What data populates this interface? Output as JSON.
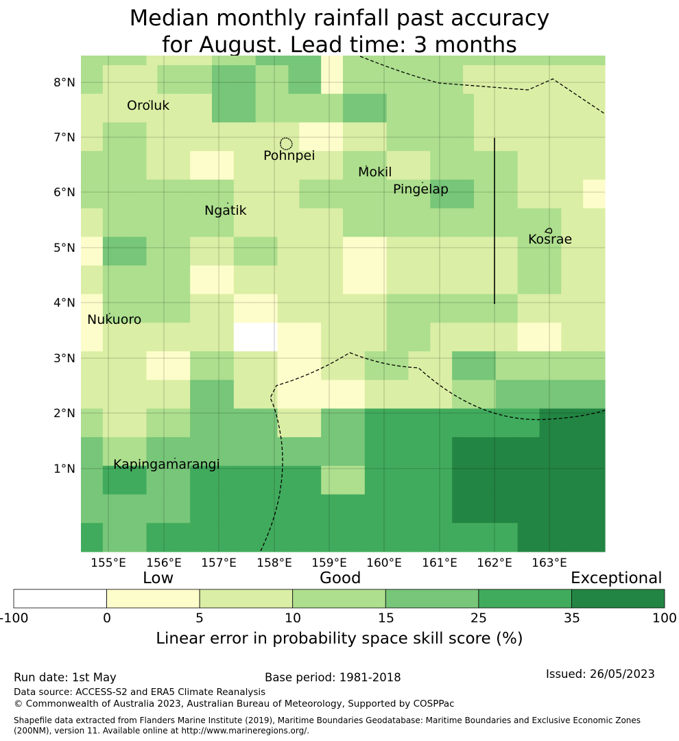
{
  "title": {
    "line1": "Median monthly rainfall past accuracy",
    "line2": "for August. Lead time: 3 months"
  },
  "map": {
    "lat_ticks": [
      "8°N",
      "7°N",
      "6°N",
      "5°N",
      "4°N",
      "3°N",
      "2°N",
      "1°N"
    ],
    "lon_ticks": [
      "155°E",
      "156°E",
      "157°E",
      "158°E",
      "159°E",
      "160°E",
      "161°E",
      "162°E",
      "163°E"
    ],
    "places": [
      {
        "id": "oroluk",
        "name": "Oroluk"
      },
      {
        "id": "pohnpei",
        "name": "Pohnpei"
      },
      {
        "id": "mokil",
        "name": "Mokil"
      },
      {
        "id": "pingelap",
        "name": "Pingelap"
      },
      {
        "id": "ngatik",
        "name": "Ngatik"
      },
      {
        "id": "kosrae",
        "name": "Kosrae"
      },
      {
        "id": "nukuoro",
        "name": "Nukuoro"
      },
      {
        "id": "kapingamarangi",
        "name": "Kapingamarangi"
      }
    ],
    "category_colors": [
      "#ffffff",
      "#fdfdcb",
      "#dbeea5",
      "#addf8e",
      "#77c679",
      "#41ab5d",
      "#238543"
    ],
    "grid_bins": [
      [
        3,
        3,
        2,
        2,
        2,
        2,
        2,
        3,
        3,
        3,
        3,
        3,
        4,
        4,
        4,
        4,
        3,
        3,
        3,
        4,
        4,
        4,
        1,
        1,
        3,
        3,
        3,
        3,
        3,
        3,
        3,
        3,
        3,
        3,
        3,
        2,
        2,
        2,
        2,
        2,
        2,
        2,
        2,
        2,
        2,
        2,
        2,
        2
      ],
      [
        2,
        2,
        2,
        2,
        2,
        2,
        2,
        2,
        2,
        2,
        2,
        2,
        4,
        4,
        4,
        4,
        3,
        3,
        3,
        3,
        3,
        3,
        3,
        3,
        4,
        4,
        4,
        4,
        3,
        3,
        3,
        3,
        3,
        3,
        3,
        3,
        2,
        2,
        2,
        2,
        2,
        2,
        2,
        2,
        2,
        2,
        2,
        2
      ],
      [
        2,
        2,
        3,
        3,
        3,
        3,
        2,
        2,
        2,
        2,
        2,
        2,
        2,
        2,
        2,
        2,
        2,
        2,
        2,
        2,
        1,
        1,
        1,
        1,
        2,
        2,
        2,
        2,
        3,
        3,
        3,
        3,
        3,
        3,
        3,
        3,
        2,
        2,
        2,
        2,
        2,
        2,
        2,
        2,
        2,
        2,
        2,
        2
      ],
      [
        3,
        3,
        3,
        3,
        3,
        3,
        2,
        2,
        2,
        2,
        1,
        1,
        1,
        1,
        2,
        2,
        2,
        2,
        2,
        2,
        2,
        2,
        2,
        2,
        3,
        3,
        3,
        3,
        2,
        2,
        2,
        2,
        3,
        3,
        3,
        3,
        3,
        3,
        3,
        3,
        2,
        2,
        2,
        2,
        2,
        2,
        2,
        2
      ],
      [
        3,
        3,
        3,
        3,
        3,
        3,
        3,
        3,
        3,
        3,
        3,
        3,
        3,
        3,
        2,
        2,
        2,
        2,
        2,
        2,
        3,
        3,
        3,
        3,
        3,
        3,
        3,
        3,
        3,
        3,
        3,
        3,
        4,
        4,
        4,
        4,
        3,
        3,
        3,
        3,
        2,
        2,
        2,
        2,
        2,
        2,
        1,
        1
      ],
      [
        2,
        2,
        3,
        3,
        3,
        3,
        3,
        3,
        3,
        3,
        3,
        3,
        3,
        3,
        2,
        2,
        2,
        2,
        2,
        2,
        2,
        2,
        2,
        2,
        3,
        3,
        3,
        3,
        3,
        3,
        3,
        3,
        3,
        3,
        3,
        3,
        3,
        3,
        3,
        3,
        3,
        3,
        3,
        3,
        2,
        2,
        2,
        2
      ],
      [
        1,
        1,
        4,
        4,
        4,
        4,
        3,
        3,
        3,
        3,
        2,
        2,
        2,
        2,
        3,
        3,
        3,
        3,
        2,
        2,
        2,
        2,
        2,
        2,
        1,
        1,
        1,
        1,
        2,
        2,
        2,
        2,
        2,
        2,
        2,
        2,
        2,
        2,
        2,
        2,
        3,
        3,
        3,
        3,
        2,
        2,
        2,
        2
      ],
      [
        2,
        2,
        3,
        3,
        3,
        3,
        3,
        3,
        3,
        3,
        1,
        1,
        1,
        1,
        2,
        2,
        2,
        2,
        2,
        2,
        2,
        2,
        2,
        2,
        1,
        1,
        1,
        1,
        2,
        2,
        2,
        2,
        2,
        2,
        2,
        2,
        2,
        2,
        2,
        2,
        3,
        3,
        3,
        3,
        2,
        2,
        2,
        2
      ],
      [
        1,
        1,
        3,
        3,
        3,
        3,
        3,
        3,
        3,
        3,
        2,
        2,
        2,
        2,
        1,
        1,
        1,
        1,
        2,
        2,
        2,
        2,
        2,
        2,
        2,
        2,
        2,
        2,
        3,
        3,
        3,
        3,
        3,
        3,
        3,
        3,
        3,
        3,
        3,
        3,
        2,
        2,
        2,
        2,
        2,
        2,
        2,
        2
      ],
      [
        1,
        1,
        2,
        2,
        2,
        2,
        2,
        2,
        2,
        2,
        2,
        2,
        2,
        2,
        0,
        0,
        0,
        0,
        1,
        1,
        1,
        1,
        2,
        2,
        2,
        2,
        2,
        2,
        3,
        3,
        3,
        3,
        2,
        2,
        2,
        2,
        2,
        2,
        2,
        2,
        1,
        1,
        1,
        1,
        2,
        2,
        2,
        2
      ],
      [
        2,
        2,
        2,
        2,
        2,
        2,
        1,
        1,
        1,
        1,
        3,
        3,
        3,
        3,
        2,
        2,
        2,
        2,
        1,
        1,
        1,
        1,
        2,
        2,
        2,
        2,
        3,
        3,
        3,
        3,
        2,
        2,
        2,
        2,
        4,
        4,
        4,
        4,
        3,
        3,
        3,
        3,
        3,
        3,
        3,
        3,
        3,
        3
      ],
      [
        2,
        2,
        2,
        2,
        2,
        2,
        2,
        2,
        2,
        2,
        4,
        4,
        4,
        4,
        2,
        2,
        2,
        2,
        1,
        1,
        1,
        1,
        1,
        1,
        1,
        1,
        2,
        2,
        2,
        2,
        2,
        2,
        2,
        2,
        3,
        3,
        3,
        3,
        4,
        4,
        4,
        4,
        4,
        4,
        4,
        4,
        4,
        4
      ],
      [
        3,
        3,
        2,
        2,
        2,
        2,
        3,
        3,
        3,
        3,
        4,
        4,
        4,
        4,
        4,
        4,
        4,
        4,
        2,
        2,
        2,
        2,
        4,
        4,
        4,
        4,
        5,
        5,
        5,
        5,
        5,
        5,
        5,
        5,
        5,
        5,
        5,
        5,
        5,
        5,
        5,
        5,
        6,
        6,
        6,
        6,
        6,
        6
      ],
      [
        4,
        4,
        3,
        3,
        3,
        3,
        4,
        4,
        4,
        4,
        4,
        4,
        4,
        4,
        4,
        4,
        4,
        4,
        4,
        4,
        4,
        4,
        4,
        4,
        4,
        4,
        5,
        5,
        5,
        5,
        5,
        5,
        5,
        5,
        6,
        6,
        6,
        6,
        6,
        6,
        6,
        6,
        6,
        6,
        6,
        6,
        6,
        6
      ],
      [
        4,
        4,
        5,
        5,
        5,
        5,
        4,
        4,
        4,
        4,
        5,
        5,
        5,
        5,
        5,
        5,
        5,
        5,
        5,
        5,
        5,
        5,
        3,
        3,
        3,
        3,
        5,
        5,
        5,
        5,
        5,
        5,
        5,
        5,
        6,
        6,
        6,
        6,
        6,
        6,
        6,
        6,
        6,
        6,
        6,
        6,
        6,
        6
      ],
      [
        4,
        4,
        4,
        4,
        4,
        4,
        4,
        4,
        4,
        4,
        5,
        5,
        5,
        5,
        5,
        5,
        5,
        5,
        5,
        5,
        5,
        5,
        5,
        5,
        5,
        5,
        5,
        5,
        5,
        5,
        5,
        5,
        5,
        5,
        6,
        6,
        6,
        6,
        6,
        6,
        6,
        6,
        6,
        6,
        6,
        6,
        6,
        6
      ],
      [
        5,
        5,
        4,
        4,
        4,
        4,
        5,
        5,
        5,
        5,
        5,
        5,
        5,
        5,
        5,
        5,
        5,
        5,
        5,
        5,
        5,
        5,
        5,
        5,
        5,
        5,
        5,
        5,
        5,
        5,
        5,
        5,
        5,
        5,
        5,
        5,
        5,
        5,
        5,
        5,
        6,
        6,
        6,
        6,
        6,
        6,
        6,
        6
      ]
    ],
    "top_strip": [
      3,
      3,
      3,
      3,
      3,
      3,
      2,
      2,
      2,
      2,
      2,
      2,
      3,
      3,
      3,
      3,
      4,
      4,
      4,
      4,
      4,
      4,
      1,
      1,
      3,
      3,
      3,
      3,
      3,
      3,
      3,
      3,
      3,
      3,
      3,
      3,
      3,
      3,
      3,
      3,
      3,
      3,
      3,
      3,
      3,
      3,
      3,
      3
    ]
  },
  "colorbar": {
    "categories": [
      "Low",
      "Good",
      "Exceptional"
    ],
    "ticks": [
      "-100",
      "0",
      "5",
      "10",
      "15",
      "25",
      "35",
      "100"
    ],
    "colors": [
      "#ffffff",
      "#fdfdcb",
      "#dbeea5",
      "#addf8e",
      "#77c679",
      "#41ab5d",
      "#238543"
    ],
    "label": "Linear error in probability space skill score (%)"
  },
  "footer": {
    "run_date": "Run date: 1st May",
    "base_period": "Base period: 1981-2018",
    "issued": "Issued: 26/05/2023",
    "data_source": "Data source: ACCESS-S2 and ERA5 Climate Reanalysis",
    "copyright": "© Commonwealth of Australia 2023, Australian Bureau of Meteorology, Supported by COSPPac",
    "shapefile_line1": "Shapefile data extracted from Flanders Marine Institute (2019), Maritime Boundaries Geodatabase: Maritime Boundaries and Exclusive Economic Zones",
    "shapefile_line2": "(200NM), version 11. Available online at http://www.marineregions.org/."
  }
}
